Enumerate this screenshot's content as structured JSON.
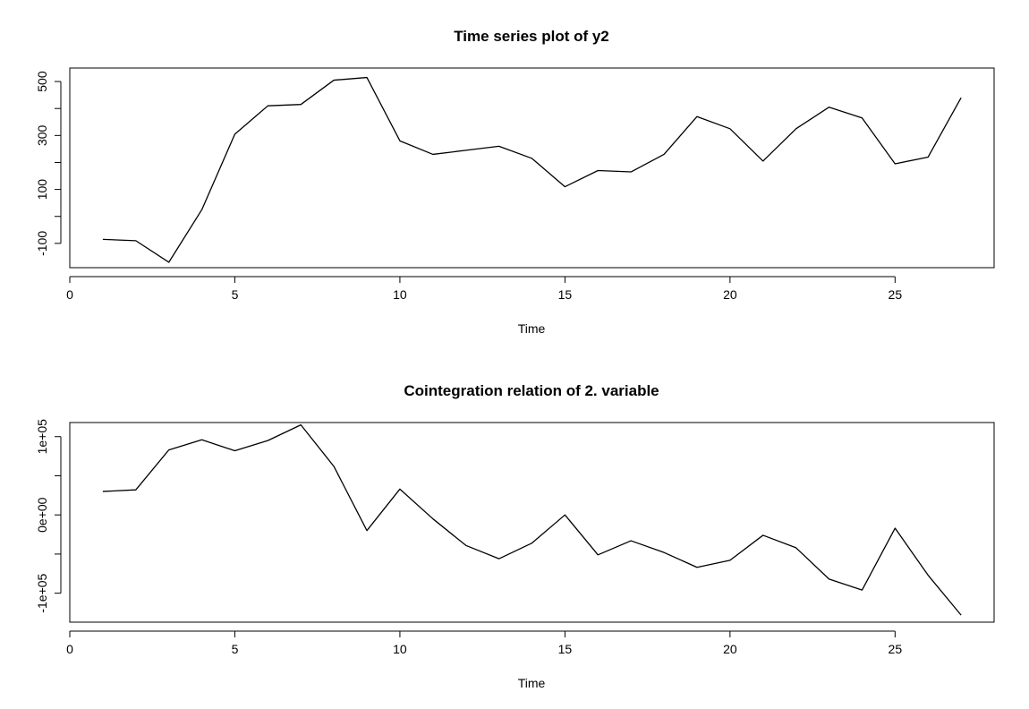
{
  "chart_data": [
    {
      "type": "line",
      "title": "Time series plot of y2",
      "xlabel": "Time",
      "ylabel": "",
      "xlim": [
        0,
        28
      ],
      "ylim": [
        -190,
        550
      ],
      "x_ticks": [
        0,
        5,
        10,
        15,
        20,
        25
      ],
      "x_tick_labels": [
        "0",
        "5",
        "10",
        "15",
        "20",
        "25"
      ],
      "y_ticks": [
        -100,
        100,
        300,
        500
      ],
      "y_tick_labels": [
        "-100",
        "100",
        "300",
        "500"
      ],
      "y_minor_ticks": [
        0,
        200,
        400
      ],
      "grid": false,
      "series": [
        {
          "x": [
            1,
            2,
            3,
            4,
            5,
            6,
            7,
            8,
            9,
            10,
            11,
            12,
            13,
            14,
            15,
            16,
            17,
            18,
            19,
            20,
            21,
            22,
            23,
            24,
            25,
            26,
            27
          ],
          "values": [
            -85,
            -90,
            -170,
            25,
            305,
            410,
            415,
            505,
            515,
            280,
            230,
            245,
            260,
            215,
            110,
            170,
            165,
            230,
            370,
            325,
            205,
            325,
            405,
            365,
            195,
            220,
            440
          ]
        }
      ],
      "color": "#000000"
    },
    {
      "type": "line",
      "title": "Cointegration relation of 2. variable",
      "xlabel": "Time",
      "ylabel": "",
      "xlim": [
        0,
        28
      ],
      "ylim": [
        -137000,
        118000
      ],
      "x_ticks": [
        0,
        5,
        10,
        15,
        20,
        25
      ],
      "x_tick_labels": [
        "0",
        "5",
        "10",
        "15",
        "20",
        "25"
      ],
      "y_ticks": [
        -100000,
        0,
        100000
      ],
      "y_tick_labels": [
        "-1e+05",
        "0e+00",
        "1e+05"
      ],
      "y_minor_ticks": [
        -50000,
        50000
      ],
      "grid": false,
      "series": [
        {
          "x": [
            1,
            2,
            3,
            4,
            5,
            6,
            7,
            8,
            9,
            10,
            11,
            12,
            13,
            14,
            15,
            16,
            17,
            18,
            19,
            20,
            21,
            22,
            23,
            24,
            25,
            26,
            27
          ],
          "values": [
            30000,
            32000,
            83000,
            96000,
            82000,
            95000,
            115000,
            62000,
            -20000,
            33000,
            -5000,
            -39000,
            -56000,
            -36000,
            0,
            -51000,
            -33000,
            -48000,
            -67000,
            -58000,
            -26000,
            -42000,
            -82000,
            -96000,
            -17000,
            -77000,
            -128000
          ]
        }
      ],
      "color": "#000000"
    }
  ]
}
